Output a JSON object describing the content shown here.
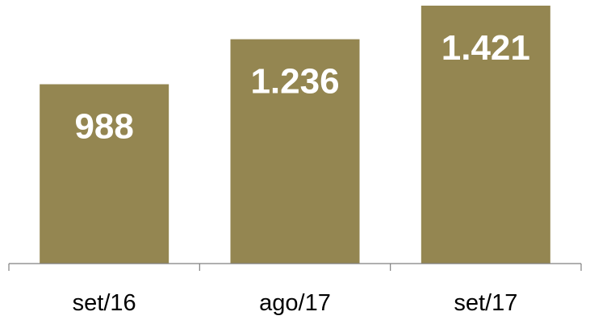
{
  "chart_data": {
    "type": "bar",
    "categories": [
      "set/16",
      "ago/17",
      "set/17"
    ],
    "values": [
      988,
      1236,
      1421
    ],
    "value_labels": [
      "988",
      "1.236",
      "1.421"
    ],
    "title": "",
    "xlabel": "",
    "ylabel": "",
    "ylim": [
      0,
      1421
    ],
    "grid": false,
    "legend": "none",
    "bar_color": "#948651",
    "label_color": "#ffffff"
  }
}
